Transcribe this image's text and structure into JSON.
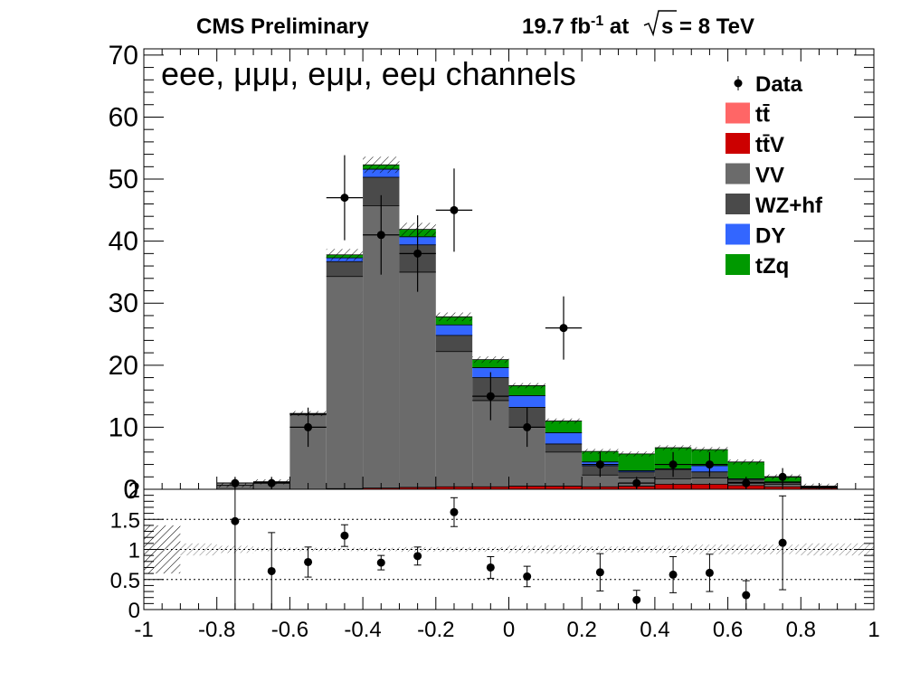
{
  "header": {
    "experiment": "CMS Preliminary",
    "lumi_value": "19.7 fb",
    "lumi_exp": "-1",
    "lumi_at": " at",
    "sqrt_s": "s",
    "energy": " = 8 TeV"
  },
  "channel_label": "eee, μμμ, eμμ, eeμ channels",
  "colors": {
    "tt": "#ff6666",
    "ttV": "#cc0000",
    "VV": "#6b6b6b",
    "WZhf": "#4a4a4a",
    "DY": "#3366ff",
    "tZq": "#009900",
    "data": "#000000"
  },
  "legend": [
    {
      "label": "Data",
      "kind": "marker",
      "color_key": "data"
    },
    {
      "label": "tt̄",
      "kind": "box",
      "color_key": "tt"
    },
    {
      "label": "tt̄V",
      "kind": "box",
      "color_key": "ttV"
    },
    {
      "label": "VV",
      "kind": "box",
      "color_key": "VV"
    },
    {
      "label": "WZ+hf",
      "kind": "box",
      "color_key": "WZhf"
    },
    {
      "label": "DY",
      "kind": "box",
      "color_key": "DY"
    },
    {
      "label": "tZq",
      "kind": "box",
      "color_key": "tZq"
    }
  ],
  "chart_data": {
    "type": "bar",
    "stacked": true,
    "bin_edges": [
      -1.0,
      -0.9,
      -0.8,
      -0.7,
      -0.6,
      -0.5,
      -0.4,
      -0.3,
      -0.2,
      -0.1,
      0.0,
      0.1,
      0.2,
      0.3,
      0.4,
      0.5,
      0.6,
      0.7,
      0.8,
      0.9,
      1.0
    ],
    "x_ticks": [
      "-1",
      "-0.8",
      "-0.6",
      "-0.4",
      "-0.2",
      "0",
      "0.2",
      "0.4",
      "0.6",
      "0.8",
      "1"
    ],
    "xlim": [
      -1,
      1
    ],
    "main": {
      "ylim": [
        0,
        71
      ],
      "y_ticks": [
        "0",
        "10",
        "20",
        "30",
        "40",
        "50",
        "60",
        "70"
      ],
      "series": [
        {
          "name": "tt̄",
          "color_key": "tt",
          "values": [
            0,
            0,
            0,
            0,
            0,
            0,
            0,
            0,
            0,
            0,
            0,
            0,
            0,
            0,
            0,
            0,
            0,
            0,
            0,
            0
          ]
        },
        {
          "name": "tt̄V",
          "color_key": "ttV",
          "values": [
            0,
            0,
            0,
            0,
            0,
            0.1,
            0.2,
            0.3,
            0.4,
            0.4,
            0.5,
            0.5,
            0.4,
            0.5,
            0.8,
            0.8,
            0.6,
            0.4,
            0.2,
            0
          ]
        },
        {
          "name": "VV",
          "color_key": "VV",
          "values": [
            0,
            0,
            0.7,
            1.1,
            12,
            34.2,
            45.5,
            34.7,
            21.8,
            13.9,
            9.5,
            5.5,
            1.9,
            1.3,
            0.9,
            1.0,
            0.5,
            0.4,
            0.1,
            0
          ]
        },
        {
          "name": "WZ+hf",
          "color_key": "WZhf",
          "values": [
            0,
            0,
            0,
            0.1,
            0.2,
            2.4,
            4.6,
            4.4,
            2.6,
            3.7,
            3.2,
            1.3,
            1.5,
            1.0,
            1.5,
            1.0,
            0.5,
            0.3,
            0.1,
            0
          ]
        },
        {
          "name": "DY",
          "color_key": "DY",
          "values": [
            0,
            0,
            0,
            0,
            0,
            0.6,
            1.3,
            1.3,
            1.7,
            1.6,
            1.9,
            1.8,
            0.6,
            0.2,
            0.1,
            1.0,
            0.1,
            0.1,
            0,
            0
          ]
        },
        {
          "name": "tZq",
          "color_key": "tZq",
          "values": [
            0,
            0,
            0,
            0,
            0,
            0.5,
            0.7,
            1.2,
            1.3,
            1.3,
            1.6,
            1.9,
            1.7,
            2.7,
            3.4,
            2.6,
            2.7,
            0.8,
            0.1,
            0
          ]
        }
      ],
      "data": {
        "name": "Data",
        "x": [
          -0.75,
          -0.65,
          -0.55,
          -0.45,
          -0.35,
          -0.25,
          -0.15,
          -0.05,
          0.05,
          0.15,
          0.25,
          0.35,
          0.45,
          0.55,
          0.65,
          0.75
        ],
        "y": [
          1,
          1,
          10,
          47,
          41,
          38,
          45,
          15,
          10,
          26,
          4,
          1,
          4,
          4,
          1,
          2
        ]
      }
    },
    "ratio": {
      "ylim": [
        0,
        2
      ],
      "y_ticks": [
        "0",
        "0.5",
        "1",
        "1.5",
        "2"
      ],
      "reference_lines": [
        0.5,
        1,
        1.5
      ],
      "x": [
        -0.75,
        -0.65,
        -0.55,
        -0.45,
        -0.35,
        -0.25,
        -0.15,
        -0.05,
        0.05,
        0.15,
        0.25,
        0.35,
        0.45,
        0.55,
        0.65,
        0.75
      ],
      "y": [
        1.47,
        0.64,
        0.79,
        1.23,
        0.78,
        0.89,
        1.62,
        0.7,
        0.55,
        null,
        0.62,
        0.16,
        0.58,
        0.61,
        0.24,
        1.11
      ],
      "err": [
        1.47,
        0.64,
        0.25,
        0.18,
        0.12,
        0.15,
        0.24,
        0.18,
        0.17,
        null,
        0.31,
        0.16,
        0.3,
        0.31,
        0.24,
        0.78
      ],
      "band_half_width": [
        0.4,
        0.1,
        0.06,
        0.03,
        0.03,
        0.03,
        0.03,
        0.04,
        0.04,
        0.04,
        0.06,
        0.07,
        0.05,
        0.05,
        0.06,
        0.08,
        0.08,
        0.08,
        0.1,
        0.1
      ]
    }
  }
}
